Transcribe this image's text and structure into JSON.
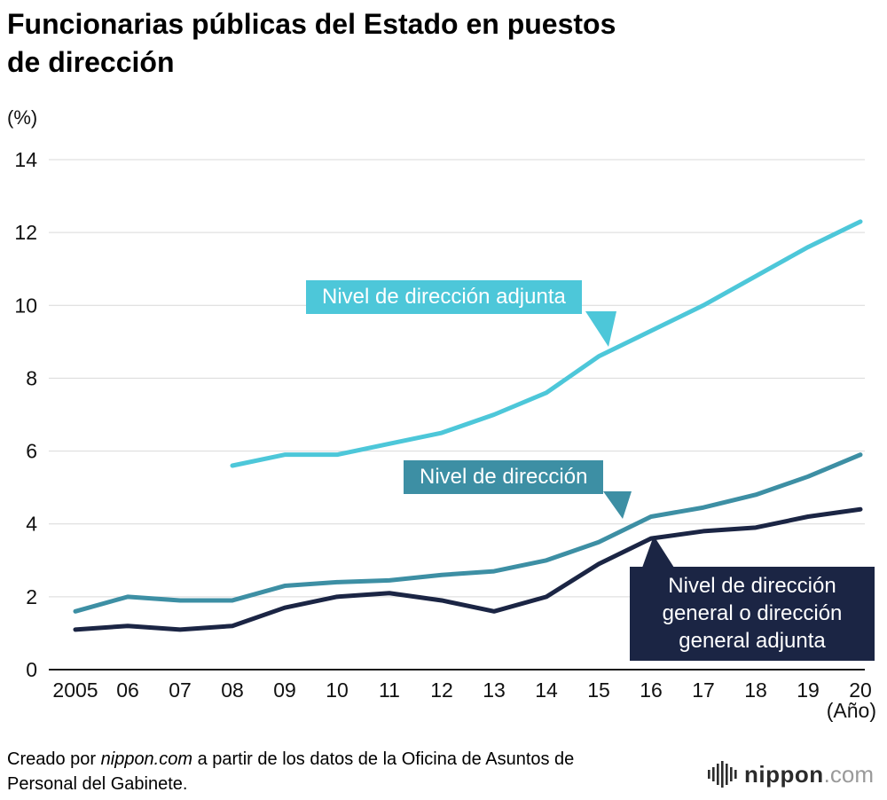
{
  "title_lines": [
    "Funcionarias públicas del Estado en puestos",
    "de dirección"
  ],
  "y_unit": "(%)",
  "x_note": "(Año)",
  "colors": {
    "series_adjunta": "#4dc7d9",
    "series_direccion": "#3d8fa4",
    "series_general": "#1b2544",
    "gridline": "#d9d9d9",
    "axis": "#1a1a1a",
    "text": "#111111",
    "logo_gray": "#9a9a9a"
  },
  "annotations": {
    "adjunta": "Nivel de dirección adjunta",
    "direccion": "Nivel de dirección",
    "general_lines": [
      "Nivel de dirección",
      "general o dirección",
      "general adjunta"
    ]
  },
  "footer": {
    "prefix": "Creado por ",
    "source": "nippon.com",
    "suffix": " a partir de los datos de la Oficina de Asuntos de Personal del Gabinete.",
    "logo_main": "nippon",
    "logo_ext": ".com"
  },
  "chart_data": {
    "type": "line",
    "title": "Funcionarias públicas del Estado en puestos de dirección",
    "ylabel": "(%)",
    "xlabel": "(Año)",
    "grid": true,
    "legend_position": "inline-annotations",
    "x_labels": [
      "2005",
      "06",
      "07",
      "08",
      "09",
      "10",
      "11",
      "12",
      "13",
      "14",
      "15",
      "16",
      "17",
      "18",
      "19",
      "20"
    ],
    "ylim": [
      0,
      14
    ],
    "yticks": [
      0,
      2,
      4,
      6,
      8,
      10,
      12,
      14
    ],
    "series": [
      {
        "name": "Nivel de dirección adjunta",
        "color": "#4dc7d9",
        "values": [
          null,
          null,
          null,
          5.6,
          5.9,
          5.9,
          6.2,
          6.5,
          7.0,
          7.6,
          8.6,
          9.3,
          10.0,
          10.8,
          11.6,
          12.3
        ]
      },
      {
        "name": "Nivel de dirección",
        "color": "#3d8fa4",
        "values": [
          1.6,
          2.0,
          1.9,
          1.9,
          2.3,
          2.4,
          2.45,
          2.6,
          2.7,
          3.0,
          3.5,
          4.2,
          4.45,
          4.8,
          5.3,
          5.9
        ]
      },
      {
        "name": "Nivel de dirección general o dirección general adjunta",
        "color": "#1b2544",
        "values": [
          1.1,
          1.2,
          1.1,
          1.2,
          1.7,
          2.0,
          2.1,
          1.9,
          1.6,
          2.0,
          2.9,
          3.6,
          3.8,
          3.9,
          4.2,
          4.4
        ]
      }
    ]
  }
}
